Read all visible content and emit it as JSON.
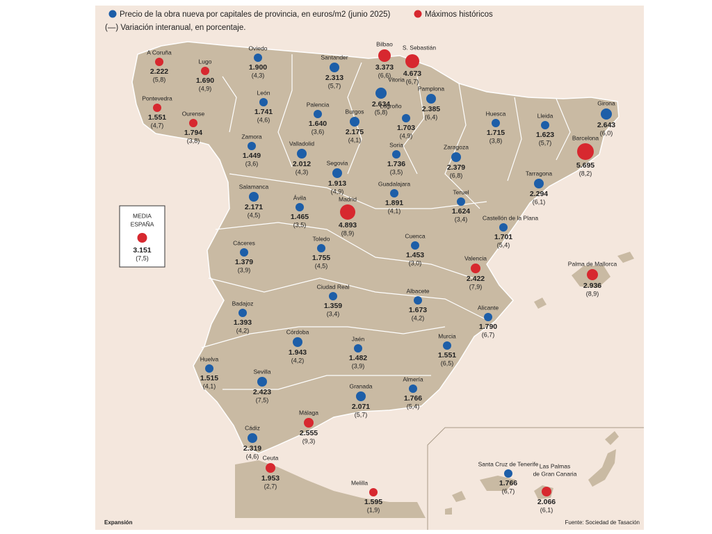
{
  "legend": {
    "price": "Precio de la obra nueva por capitales de provincia, en euros/m2 (junio 2025)",
    "record": "Máximos históricos",
    "change": "(—) Variación interanual, en porcentaje."
  },
  "colors": {
    "price": "#1d5ea8",
    "record": "#d7282f"
  },
  "average": {
    "label_lines": [
      "MEDIA",
      "ESPAÑA"
    ],
    "price": "3.151",
    "change": "(7,5)",
    "record": true
  },
  "cities": [
    {
      "name": "A Coruña",
      "price": "2.222",
      "change": "(5,8)",
      "record": true
    },
    {
      "name": "Lugo",
      "price": "1.690",
      "change": "(4,9)",
      "record": true
    },
    {
      "name": "Oviedo",
      "price": "1.900",
      "change": "(4,3)",
      "record": false
    },
    {
      "name": "Santander",
      "price": "2.313",
      "change": "(5,7)",
      "record": false
    },
    {
      "name": "Bilbao",
      "price": "3.373",
      "change": "(6,6)",
      "record": true
    },
    {
      "name": "S. Sebastián",
      "price": "4.673",
      "change": "(6,7)",
      "record": true
    },
    {
      "name": "Pontevedra",
      "price": "1.551",
      "change": "(4,7)",
      "record": true
    },
    {
      "name": "Ourense",
      "price": "1.794",
      "change": "(3,8)",
      "record": true
    },
    {
      "name": "León",
      "price": "1.741",
      "change": "(4,6)",
      "record": false
    },
    {
      "name": "Palencia",
      "price": "1.640",
      "change": "(3,6)",
      "record": false
    },
    {
      "name": "Burgos",
      "price": "2.175",
      "change": "(4,1)",
      "record": false
    },
    {
      "name": "Vitoria",
      "price": "2.634",
      "change": "(5,8)",
      "record": false
    },
    {
      "name": "Pamplona",
      "price": "2.385",
      "change": "(6,4)",
      "record": false
    },
    {
      "name": "Logroño",
      "price": "1.703",
      "change": "(4,9)",
      "record": false
    },
    {
      "name": "Huesca",
      "price": "1.715",
      "change": "(3,8)",
      "record": false
    },
    {
      "name": "Lleida",
      "price": "1.623",
      "change": "(5,7)",
      "record": false
    },
    {
      "name": "Girona",
      "price": "2.643",
      "change": "(6,0)",
      "record": false
    },
    {
      "name": "Barcelona",
      "price": "5.695",
      "change": "(8,2)",
      "record": true
    },
    {
      "name": "Zamora",
      "price": "1.449",
      "change": "(3,6)",
      "record": false
    },
    {
      "name": "Valladolid",
      "price": "2.012",
      "change": "(4,3)",
      "record": false
    },
    {
      "name": "Soria",
      "price": "1.736",
      "change": "(3,5)",
      "record": false
    },
    {
      "name": "Zaragoza",
      "price": "2.379",
      "change": "(6,8)",
      "record": false
    },
    {
      "name": "Segovia",
      "price": "1.913",
      "change": "(4,9)",
      "record": false
    },
    {
      "name": "Tarragona",
      "price": "2.294",
      "change": "(6,1)",
      "record": false
    },
    {
      "name": "Salamanca",
      "price": "2.171",
      "change": "(4,5)",
      "record": false
    },
    {
      "name": "Ávila",
      "price": "1.465",
      "change": "(3,5)",
      "record": false
    },
    {
      "name": "Madrid",
      "price": "4.893",
      "change": "(8,9)",
      "record": true
    },
    {
      "name": "Guadalajara",
      "price": "1.891",
      "change": "(4,1)",
      "record": false
    },
    {
      "name": "Teruel",
      "price": "1.624",
      "change": "(3,4)",
      "record": false
    },
    {
      "name": "Castellón de la Plana",
      "price": "1.701",
      "change": "(5,4)",
      "record": false
    },
    {
      "name": "Cáceres",
      "price": "1.379",
      "change": "(3,9)",
      "record": false
    },
    {
      "name": "Toledo",
      "price": "1.755",
      "change": "(4,5)",
      "record": false
    },
    {
      "name": "Cuenca",
      "price": "1.453",
      "change": "(3,0)",
      "record": false
    },
    {
      "name": "Valencia",
      "price": "2.422",
      "change": "(7,9)",
      "record": true
    },
    {
      "name": "Palma de Mallorca",
      "price": "2.936",
      "change": "(8,9)",
      "record": true
    },
    {
      "name": "Ciudad Real",
      "price": "1.359",
      "change": "(3,4)",
      "record": false
    },
    {
      "name": "Albacete",
      "price": "1.673",
      "change": "(4,2)",
      "record": false
    },
    {
      "name": "Badajoz",
      "price": "1.393",
      "change": "(4,2)",
      "record": false
    },
    {
      "name": "Alicante",
      "price": "1.790",
      "change": "(6,7)",
      "record": false
    },
    {
      "name": "Córdoba",
      "price": "1.943",
      "change": "(4,2)",
      "record": false
    },
    {
      "name": "Jaén",
      "price": "1.482",
      "change": "(3,9)",
      "record": false
    },
    {
      "name": "Murcia",
      "price": "1.551",
      "change": "(6,5)",
      "record": false
    },
    {
      "name": "Huelva",
      "price": "1.515",
      "change": "(4,1)",
      "record": false
    },
    {
      "name": "Sevilla",
      "price": "2.423",
      "change": "(7,5)",
      "record": false
    },
    {
      "name": "Granada",
      "price": "2.071",
      "change": "(5,7)",
      "record": false
    },
    {
      "name": "Almería",
      "price": "1.766",
      "change": "(5,4)",
      "record": false
    },
    {
      "name": "Málaga",
      "price": "2.555",
      "change": "(9,3)",
      "record": true
    },
    {
      "name": "Cádiz",
      "price": "2.319",
      "change": "(4,6)",
      "record": false
    },
    {
      "name": "Ceuta",
      "price": "1.953",
      "change": "(2,7)",
      "record": true
    },
    {
      "name": "Melilla",
      "price": "1.595",
      "change": "(1,9)",
      "record": true
    },
    {
      "name": "Santa Cruz de Tenerife",
      "price": "1.766",
      "change": "(6,7)",
      "record": false
    },
    {
      "name": "Las Palmas",
      "name_line2": "de Gran Canaria",
      "price": "2.066",
      "change": "(6,1)",
      "record": true
    }
  ],
  "footer": {
    "source_outlet": "Expansión",
    "source": "Fuente: Sociedad de Tasación"
  }
}
